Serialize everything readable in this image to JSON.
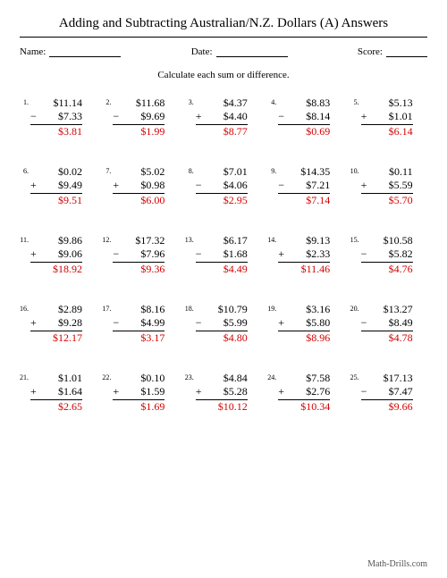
{
  "title": "Adding and Subtracting Australian/N.Z. Dollars (A) Answers",
  "labels": {
    "name": "Name:",
    "date": "Date:",
    "score": "Score:"
  },
  "instruction": "Calculate each sum or difference.",
  "footer": "Math-Drills.com",
  "colors": {
    "answer": "#d40000",
    "text": "#000000",
    "bg": "#ffffff"
  },
  "font": {
    "family": "Times New Roman",
    "title_size": 15,
    "body_size": 12,
    "num_size": 8
  },
  "layout": {
    "cols": 5,
    "rows": 5
  },
  "problems": [
    {
      "n": "1.",
      "a": "$11.14",
      "op": "−",
      "b": "$7.33",
      "ans": "$3.81"
    },
    {
      "n": "2.",
      "a": "$11.68",
      "op": "−",
      "b": "$9.69",
      "ans": "$1.99"
    },
    {
      "n": "3.",
      "a": "$4.37",
      "op": "+",
      "b": "$4.40",
      "ans": "$8.77"
    },
    {
      "n": "4.",
      "a": "$8.83",
      "op": "−",
      "b": "$8.14",
      "ans": "$0.69"
    },
    {
      "n": "5.",
      "a": "$5.13",
      "op": "+",
      "b": "$1.01",
      "ans": "$6.14"
    },
    {
      "n": "6.",
      "a": "$0.02",
      "op": "+",
      "b": "$9.49",
      "ans": "$9.51"
    },
    {
      "n": "7.",
      "a": "$5.02",
      "op": "+",
      "b": "$0.98",
      "ans": "$6.00"
    },
    {
      "n": "8.",
      "a": "$7.01",
      "op": "−",
      "b": "$4.06",
      "ans": "$2.95"
    },
    {
      "n": "9.",
      "a": "$14.35",
      "op": "−",
      "b": "$7.21",
      "ans": "$7.14"
    },
    {
      "n": "10.",
      "a": "$0.11",
      "op": "+",
      "b": "$5.59",
      "ans": "$5.70"
    },
    {
      "n": "11.",
      "a": "$9.86",
      "op": "+",
      "b": "$9.06",
      "ans": "$18.92"
    },
    {
      "n": "12.",
      "a": "$17.32",
      "op": "−",
      "b": "$7.96",
      "ans": "$9.36"
    },
    {
      "n": "13.",
      "a": "$6.17",
      "op": "−",
      "b": "$1.68",
      "ans": "$4.49"
    },
    {
      "n": "14.",
      "a": "$9.13",
      "op": "+",
      "b": "$2.33",
      "ans": "$11.46"
    },
    {
      "n": "15.",
      "a": "$10.58",
      "op": "−",
      "b": "$5.82",
      "ans": "$4.76"
    },
    {
      "n": "16.",
      "a": "$2.89",
      "op": "+",
      "b": "$9.28",
      "ans": "$12.17"
    },
    {
      "n": "17.",
      "a": "$8.16",
      "op": "−",
      "b": "$4.99",
      "ans": "$3.17"
    },
    {
      "n": "18.",
      "a": "$10.79",
      "op": "−",
      "b": "$5.99",
      "ans": "$4.80"
    },
    {
      "n": "19.",
      "a": "$3.16",
      "op": "+",
      "b": "$5.80",
      "ans": "$8.96"
    },
    {
      "n": "20.",
      "a": "$13.27",
      "op": "−",
      "b": "$8.49",
      "ans": "$4.78"
    },
    {
      "n": "21.",
      "a": "$1.01",
      "op": "+",
      "b": "$1.64",
      "ans": "$2.65"
    },
    {
      "n": "22.",
      "a": "$0.10",
      "op": "+",
      "b": "$1.59",
      "ans": "$1.69"
    },
    {
      "n": "23.",
      "a": "$4.84",
      "op": "+",
      "b": "$5.28",
      "ans": "$10.12"
    },
    {
      "n": "24.",
      "a": "$7.58",
      "op": "+",
      "b": "$2.76",
      "ans": "$10.34"
    },
    {
      "n": "25.",
      "a": "$17.13",
      "op": "−",
      "b": "$7.47",
      "ans": "$9.66"
    }
  ]
}
